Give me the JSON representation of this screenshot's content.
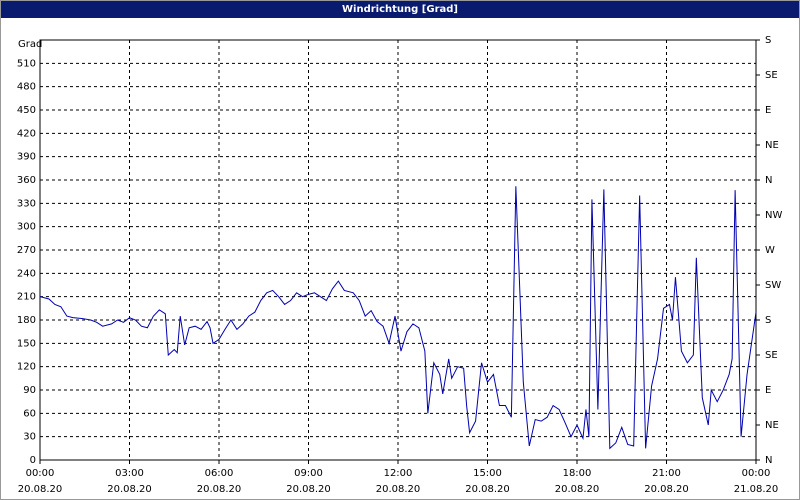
{
  "chart_data": {
    "type": "line",
    "title": "Windrichtung [Grad]",
    "ylabel": "Grad",
    "color": "#0000b0",
    "grid": true,
    "xlim": [
      0,
      24
    ],
    "ylim": [
      0,
      540
    ],
    "y2lim": [
      0,
      540
    ],
    "xticks": [
      {
        "value": 0,
        "label": "00:00",
        "date": "20.08.20"
      },
      {
        "value": 3,
        "label": "03:00",
        "date": "20.08.20"
      },
      {
        "value": 6,
        "label": "06:00",
        "date": "20.08.20"
      },
      {
        "value": 9,
        "label": "09:00",
        "date": "20.08.20"
      },
      {
        "value": 12,
        "label": "12:00",
        "date": "20.08.20"
      },
      {
        "value": 15,
        "label": "15:00",
        "date": "20.08.20"
      },
      {
        "value": 18,
        "label": "18:00",
        "date": "20.08.20"
      },
      {
        "value": 21,
        "label": "21:00",
        "date": "20.08.20"
      },
      {
        "value": 24,
        "label": "00:00",
        "date": "21.08.20"
      }
    ],
    "yticks": [
      0,
      30,
      60,
      90,
      120,
      150,
      180,
      210,
      240,
      270,
      300,
      330,
      360,
      390,
      420,
      450,
      480,
      510
    ],
    "y2ticks": [
      {
        "value": 0,
        "label": "N"
      },
      {
        "value": 45,
        "label": "NE"
      },
      {
        "value": 90,
        "label": "E"
      },
      {
        "value": 135,
        "label": "SE"
      },
      {
        "value": 180,
        "label": "S"
      },
      {
        "value": 225,
        "label": "SW"
      },
      {
        "value": 270,
        "label": "W"
      },
      {
        "value": 315,
        "label": "NW"
      },
      {
        "value": 360,
        "label": "N"
      },
      {
        "value": 405,
        "label": "NE"
      },
      {
        "value": 450,
        "label": "E"
      },
      {
        "value": 495,
        "label": "SE"
      },
      {
        "value": 540,
        "label": "S"
      }
    ],
    "x": [
      0,
      0.3,
      0.5,
      0.7,
      0.9,
      1.1,
      1.4,
      1.7,
      1.9,
      2.1,
      2.4,
      2.6,
      2.8,
      3.0,
      3.2,
      3.4,
      3.6,
      3.8,
      4.0,
      4.2,
      4.3,
      4.5,
      4.6,
      4.7,
      4.85,
      5.0,
      5.2,
      5.4,
      5.6,
      5.7,
      5.8,
      6.0,
      6.2,
      6.4,
      6.6,
      6.8,
      7.0,
      7.2,
      7.4,
      7.6,
      7.8,
      8.0,
      8.2,
      8.4,
      8.6,
      8.8,
      9.0,
      9.2,
      9.4,
      9.6,
      9.8,
      10.0,
      10.2,
      10.5,
      10.7,
      10.9,
      11.1,
      11.3,
      11.5,
      11.7,
      11.9,
      12.1,
      12.3,
      12.5,
      12.7,
      12.9,
      13.0,
      13.2,
      13.4,
      13.5,
      13.7,
      13.8,
      14.0,
      14.2,
      14.3,
      14.4,
      14.6,
      14.8,
      15.0,
      15.2,
      15.4,
      15.6,
      15.8,
      15.95,
      16.2,
      16.4,
      16.6,
      16.8,
      17.0,
      17.2,
      17.4,
      17.6,
      17.8,
      18.0,
      18.2,
      18.3,
      18.4,
      18.5,
      18.7,
      18.9,
      19.1,
      19.3,
      19.5,
      19.7,
      19.9,
      20.1,
      20.3,
      20.5,
      20.7,
      20.9,
      21.1,
      21.2,
      21.3,
      21.5,
      21.7,
      21.9,
      22.0,
      22.2,
      22.4,
      22.5,
      22.7,
      22.9,
      23.1,
      23.2,
      23.3,
      23.5,
      23.7,
      24.0
    ],
    "values": [
      210,
      207,
      200,
      197,
      185,
      183,
      182,
      180,
      177,
      172,
      175,
      180,
      177,
      183,
      180,
      172,
      170,
      185,
      193,
      188,
      135,
      142,
      138,
      185,
      148,
      170,
      172,
      168,
      178,
      170,
      150,
      155,
      168,
      180,
      168,
      175,
      185,
      190,
      205,
      215,
      218,
      210,
      200,
      205,
      215,
      210,
      213,
      215,
      210,
      205,
      220,
      230,
      218,
      215,
      205,
      185,
      192,
      178,
      172,
      150,
      185,
      140,
      165,
      175,
      170,
      140,
      60,
      125,
      110,
      85,
      130,
      105,
      120,
      118,
      70,
      35,
      50,
      125,
      100,
      110,
      70,
      70,
      55,
      352,
      100,
      18,
      52,
      50,
      55,
      70,
      65,
      48,
      30,
      45,
      28,
      65,
      30,
      335,
      65,
      348,
      15,
      22,
      42,
      20,
      18,
      340,
      15,
      95,
      130,
      195,
      200,
      180,
      235,
      140,
      125,
      135,
      260,
      80,
      45,
      90,
      75,
      90,
      110,
      130,
      347,
      30,
      110,
      190
    ]
  }
}
